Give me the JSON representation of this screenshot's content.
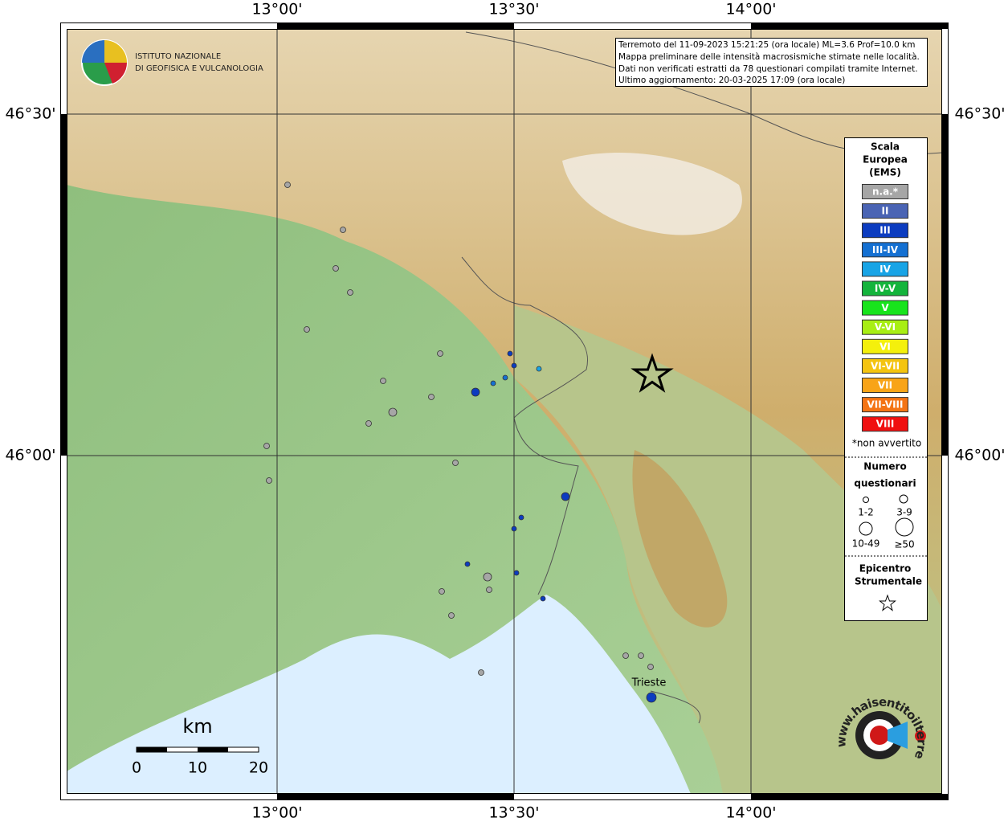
{
  "map": {
    "lon_labels": [
      "13°00'",
      "13°30'",
      "14°00'"
    ],
    "lat_labels": [
      "46°30'",
      "46°00'"
    ],
    "info": [
      "Terremoto del 11-09-2023 15:21:25 (ora locale) ML=3.6 Prof=10.0 km",
      "Mappa preliminare delle intensità macrosismiche stimate nelle località.",
      "Dati non verificati estratti da 78 questionari compilati tramite Internet.",
      "Ultimo aggiornamento: 20-03-2025 17:09 (ora locale)"
    ],
    "logo": [
      "ISTITUTO NAZIONALE",
      "DI GEOFISICA E VULCANOLOGIA"
    ],
    "legend": {
      "title": [
        "Scala",
        "Europea",
        "(EMS)"
      ],
      "classes": [
        {
          "label": "n.a.*",
          "color": "#a6a6a6"
        },
        {
          "label": "II",
          "color": "#4a64b4"
        },
        {
          "label": "III",
          "color": "#0c3cc0"
        },
        {
          "label": "III-IV",
          "color": "#1470d2"
        },
        {
          "label": "IV",
          "color": "#18a4e6"
        },
        {
          "label": "IV-V",
          "color": "#14b43c"
        },
        {
          "label": "V",
          "color": "#18e41c"
        },
        {
          "label": "V-VI",
          "color": "#a8ee14"
        },
        {
          "label": "VI",
          "color": "#f4f00c"
        },
        {
          "label": "VI-VII",
          "color": "#f4c410"
        },
        {
          "label": "VII",
          "color": "#f8a418"
        },
        {
          "label": "VII-VIII",
          "color": "#f47414"
        },
        {
          "label": "VIII",
          "color": "#f01010"
        }
      ],
      "note": "*non avvertito",
      "size_title": [
        "Numero",
        "questionari"
      ],
      "sizes": [
        "1-2",
        "3-9",
        "10-49",
        "≥50"
      ],
      "epicenter_title": [
        "Epicentro",
        "Strumentale"
      ]
    },
    "scale": {
      "unit": "km",
      "ticks": [
        "0",
        "10",
        "20"
      ]
    },
    "place": "Trieste",
    "site": "www.haisentitoilterremoto.it"
  }
}
